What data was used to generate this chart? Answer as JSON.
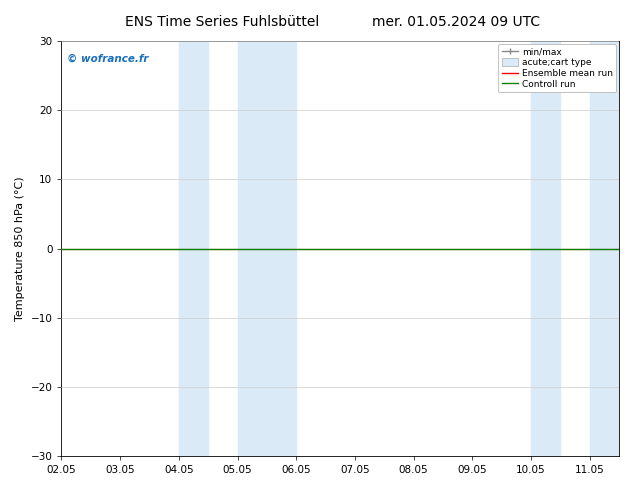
{
  "title_left": "ENS Time Series Fuhlsbüttel",
  "title_right": "mer. 01.05.2024 09 UTC",
  "ylabel": "Temperature 850 hPa (°C)",
  "ylim": [
    -30,
    30
  ],
  "yticks": [
    -30,
    -20,
    -10,
    0,
    10,
    20,
    30
  ],
  "xlim": [
    0,
    9
  ],
  "xtick_labels": [
    "02.05",
    "03.05",
    "04.05",
    "05.05",
    "06.05",
    "07.05",
    "08.05",
    "09.05",
    "10.05",
    "11.05"
  ],
  "xtick_positions": [
    0,
    1,
    2,
    3,
    4,
    5,
    6,
    7,
    8,
    9
  ],
  "shaded_regions": [
    [
      2.0,
      2.5
    ],
    [
      3.0,
      4.0
    ],
    [
      8.0,
      8.5
    ],
    [
      9.0,
      9.5
    ]
  ],
  "shaded_color": "#daeaf7",
  "control_run_y": 0.0,
  "ensemble_mean_y": 0.0,
  "watermark": "© wofrance.fr",
  "watermark_color": "#1a6fbb",
  "legend_labels": [
    "min/max",
    "acute;cart type",
    "Ensemble mean run",
    "Controll run"
  ],
  "bg_color": "#ffffff",
  "grid_color": "#cccccc",
  "title_fontsize": 10,
  "axis_fontsize": 8,
  "tick_fontsize": 7.5
}
